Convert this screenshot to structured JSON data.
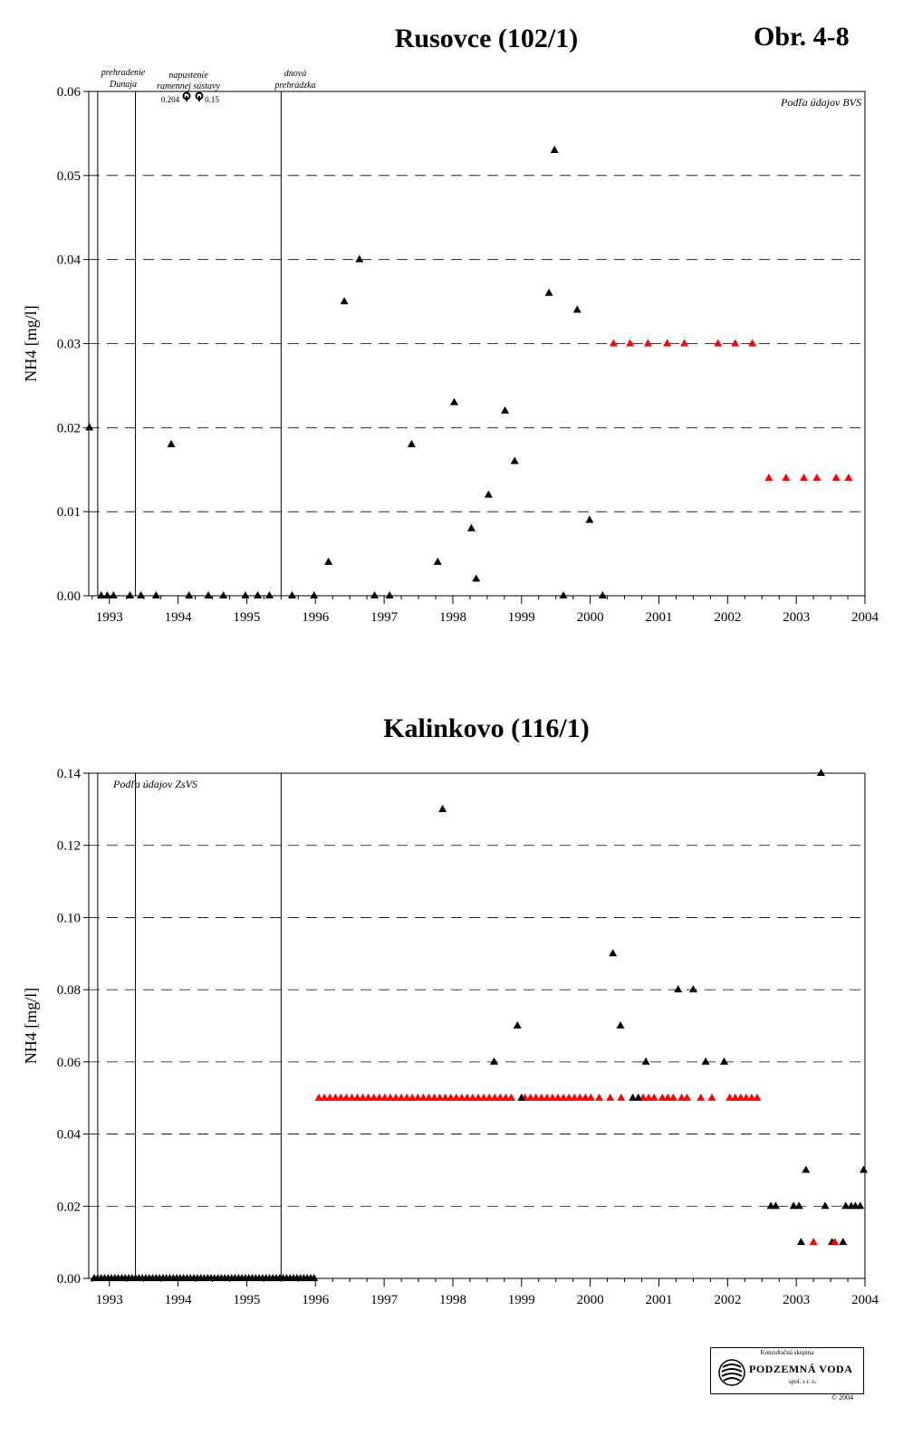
{
  "figure_code": "Obr. 4-8",
  "annotations": {
    "dam": [
      "prehradenie",
      "Dunaja"
    ],
    "fill": [
      "napustenie",
      "ramennej sústavy"
    ],
    "weir": [
      "dnová",
      "prehrádzka"
    ],
    "off_values": [
      "0.204",
      "0.15"
    ]
  },
  "logo": {
    "top": "Konzultačná skupina",
    "name": "PODZEMNÁ VODA",
    "sub": "spol. s r. o.",
    "copyright": "© 2004"
  },
  "colors": {
    "black_series": "#000000",
    "red_series": "#ff0000"
  },
  "chart_data": [
    {
      "type": "scatter",
      "title": "Rusovce (102/1)",
      "ylabel": "NH4 [mg/l]",
      "note": "Podľa údajov BVS",
      "xlim": [
        1992.7,
        2004.0
      ],
      "ylim": [
        0,
        0.06
      ],
      "yticks": [
        0.0,
        0.01,
        0.02,
        0.03,
        0.04,
        0.05,
        0.06
      ],
      "ytick_labels": [
        "0.00",
        "0.01",
        "0.02",
        "0.03",
        "0.04",
        "0.05",
        "0.06"
      ],
      "xticks": [
        "1993",
        "1994",
        "1995",
        "1996",
        "1997",
        "1998",
        "1999",
        "2000",
        "2001",
        "2002",
        "2003",
        "2004"
      ],
      "event_lines": [
        1992.83,
        1993.38,
        1995.5
      ],
      "grid": "horizontal dashed",
      "series": [
        {
          "color": "black",
          "marker": "triangle",
          "points": [
            [
              1992.71,
              0.02
            ],
            [
              1992.88,
              0
            ],
            [
              1992.97,
              0
            ],
            [
              1993.06,
              0
            ],
            [
              1993.3,
              0
            ],
            [
              1993.46,
              0
            ],
            [
              1993.68,
              0
            ],
            [
              1993.9,
              0.018
            ],
            [
              1994.16,
              0
            ],
            [
              1994.44,
              0
            ],
            [
              1994.66,
              0
            ],
            [
              1994.98,
              0
            ],
            [
              1995.16,
              0
            ],
            [
              1995.33,
              0
            ],
            [
              1995.66,
              0
            ],
            [
              1995.98,
              0
            ],
            [
              1996.19,
              0.004
            ],
            [
              1996.42,
              0.035
            ],
            [
              1996.64,
              0.04
            ],
            [
              1996.86,
              0
            ],
            [
              1997.08,
              0
            ],
            [
              1997.4,
              0.018
            ],
            [
              1997.78,
              0.004
            ],
            [
              1998.02,
              0.023
            ],
            [
              1998.27,
              0.008
            ],
            [
              1998.34,
              0.002
            ],
            [
              1998.52,
              0.012
            ],
            [
              1998.76,
              0.022
            ],
            [
              1998.9,
              0.016
            ],
            [
              1999.4,
              0.036
            ],
            [
              1999.48,
              0.053
            ],
            [
              1999.61,
              0
            ],
            [
              1999.81,
              0.034
            ],
            [
              1999.99,
              0.009
            ],
            [
              2000.18,
              0
            ]
          ]
        },
        {
          "color": "red",
          "marker": "triangle",
          "points": [
            [
              2000.34,
              0.03
            ],
            [
              2000.58,
              0.03
            ],
            [
              2000.84,
              0.03
            ],
            [
              2001.12,
              0.03
            ],
            [
              2001.37,
              0.03
            ],
            [
              2001.86,
              0.03
            ],
            [
              2002.11,
              0.03
            ],
            [
              2002.36,
              0.03
            ],
            [
              2002.6,
              0.014
            ],
            [
              2002.85,
              0.014
            ],
            [
              2003.11,
              0.014
            ],
            [
              2003.3,
              0.014
            ],
            [
              2003.58,
              0.014
            ],
            [
              2003.76,
              0.014
            ]
          ]
        }
      ]
    },
    {
      "type": "scatter",
      "title": "Kalinkovo (116/1)",
      "ylabel": "NH4 [mg/l]",
      "note": "Podľa údajov ZsVS",
      "xlim": [
        1992.7,
        2004.0
      ],
      "ylim": [
        0,
        0.14
      ],
      "yticks": [
        0.0,
        0.02,
        0.04,
        0.06,
        0.08,
        0.1,
        0.12,
        0.14
      ],
      "ytick_labels": [
        "0.00",
        "0.02",
        "0.04",
        "0.06",
        "0.08",
        "0.10",
        "0.12",
        "0.14"
      ],
      "xticks": [
        "1993",
        "1994",
        "1995",
        "1996",
        "1997",
        "1998",
        "1999",
        "2000",
        "2001",
        "2002",
        "2003",
        "2004"
      ],
      "event_lines": [
        1992.83,
        1993.38,
        1995.5
      ],
      "grid": "horizontal dashed",
      "series": [
        {
          "color": "black",
          "marker": "triangle",
          "points": [
            [
              1997.85,
              0.13
            ],
            [
              1998.6,
              0.06
            ],
            [
              1998.94,
              0.07
            ],
            [
              1999.0,
              0.05
            ],
            [
              2000.33,
              0.09
            ],
            [
              2000.44,
              0.07
            ],
            [
              2000.62,
              0.05
            ],
            [
              2000.7,
              0.05
            ],
            [
              2000.81,
              0.06
            ],
            [
              2001.28,
              0.08
            ],
            [
              2001.5,
              0.08
            ],
            [
              2001.68,
              0.06
            ],
            [
              2001.95,
              0.06
            ],
            [
              2002.63,
              0.02
            ],
            [
              2002.7,
              0.02
            ],
            [
              2002.96,
              0.02
            ],
            [
              2003.04,
              0.02
            ],
            [
              2003.07,
              0.01
            ],
            [
              2003.14,
              0.03
            ],
            [
              2003.36,
              0.14
            ],
            [
              2003.42,
              0.02
            ],
            [
              2003.52,
              0.01
            ],
            [
              2003.68,
              0.01
            ],
            [
              2003.72,
              0.02
            ],
            [
              2003.8,
              0.02
            ],
            [
              2003.86,
              0.02
            ],
            [
              2003.93,
              0.02
            ],
            [
              2003.98,
              0.03
            ]
          ]
        },
        {
          "color": "red",
          "marker": "triangle",
          "points": [
            [
              2003.25,
              0.01
            ],
            [
              2003.56,
              0.01
            ]
          ]
        }
      ],
      "black_zero_range": [
        1992.78,
        1996.0,
        0.05
      ],
      "red_band": {
        "y": 0.05,
        "x": [
          1996.05,
          1996.13,
          1996.21,
          1996.29,
          1996.37,
          1996.45,
          1996.53,
          1996.61,
          1996.69,
          1996.77,
          1996.85,
          1996.93,
          1997.01,
          1997.09,
          1997.17,
          1997.25,
          1997.33,
          1997.41,
          1997.49,
          1997.57,
          1997.65,
          1997.73,
          1997.81,
          1997.89,
          1997.97,
          1998.05,
          1998.13,
          1998.21,
          1998.29,
          1998.37,
          1998.45,
          1998.53,
          1998.61,
          1998.69,
          1998.77,
          1998.85,
          1999.05,
          1999.13,
          1999.21,
          1999.29,
          1999.37,
          1999.45,
          1999.53,
          1999.61,
          1999.69,
          1999.77,
          1999.85,
          1999.93,
          2000.01,
          2000.13,
          2000.29,
          2000.45,
          2000.77,
          2000.85,
          2000.93,
          2001.05,
          2001.13,
          2001.21,
          2001.33,
          2001.41,
          2001.61,
          2001.77,
          2002.03,
          2002.11,
          2002.19,
          2002.27,
          2002.35,
          2002.43
        ]
      }
    }
  ]
}
